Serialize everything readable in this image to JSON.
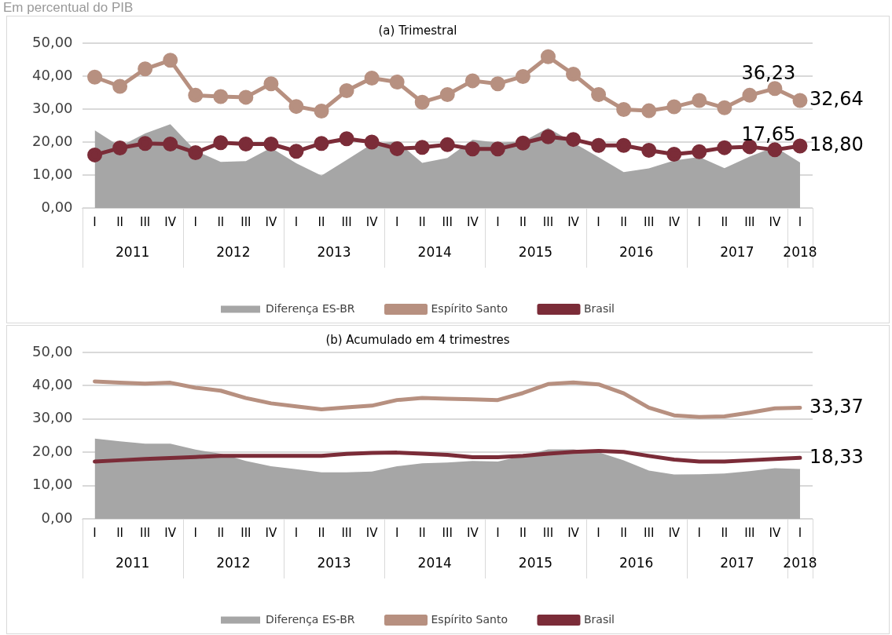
{
  "chart_data": [
    {
      "type": "line",
      "title": "(a) Trimestral",
      "subtitle": "Em percentual do PIB",
      "categories": [
        "I",
        "II",
        "III",
        "IV",
        "I",
        "II",
        "III",
        "IV",
        "I",
        "II",
        "III",
        "IV",
        "I",
        "II",
        "III",
        "IV",
        "I",
        "II",
        "III",
        "IV",
        "I",
        "II",
        "III",
        "IV",
        "I",
        "II",
        "III",
        "IV",
        "I"
      ],
      "annotations": [
        "2011",
        "2012",
        "2013",
        "2014",
        "2015",
        "2016",
        "2017",
        "2018"
      ],
      "series": [
        {
          "name": "Diferença ES-BR",
          "type": "area",
          "marker": "none",
          "color": "#a6a6a6",
          "values": [
            23.6,
            18.7,
            22.6,
            25.4,
            17.4,
            14.0,
            14.2,
            18.3,
            13.6,
            9.8,
            14.6,
            19.4,
            20.2,
            13.7,
            15.2,
            20.7,
            19.8,
            20.2,
            24.3,
            19.8,
            15.4,
            10.9,
            12.0,
            14.4,
            15.5,
            12.1,
            15.6,
            18.6,
            13.8
          ]
        },
        {
          "name": "Espírito Santo",
          "color": "#b79080",
          "values": [
            39.7,
            36.9,
            42.2,
            44.8,
            34.2,
            33.8,
            33.6,
            37.7,
            30.8,
            29.4,
            35.6,
            39.4,
            38.2,
            32.1,
            34.4,
            38.6,
            37.7,
            39.9,
            45.9,
            40.6,
            34.4,
            29.9,
            29.5,
            30.7,
            32.6,
            30.4,
            34.2,
            36.23,
            32.64
          ],
          "value_labels": [
            null,
            null,
            null,
            null,
            null,
            null,
            null,
            null,
            null,
            null,
            null,
            null,
            null,
            null,
            null,
            null,
            null,
            null,
            null,
            null,
            null,
            null,
            null,
            null,
            null,
            null,
            null,
            "36,23",
            "32,64"
          ]
        },
        {
          "name": "Brasil",
          "color": "#7b2c38",
          "values": [
            16.1,
            18.2,
            19.6,
            19.4,
            16.8,
            19.8,
            19.4,
            19.4,
            17.2,
            19.6,
            21.0,
            20.0,
            18.0,
            18.4,
            19.2,
            17.9,
            17.9,
            19.7,
            21.6,
            20.8,
            19.0,
            19.0,
            17.5,
            16.3,
            17.1,
            18.3,
            18.6,
            17.65,
            18.8
          ],
          "value_labels": [
            null,
            null,
            null,
            null,
            null,
            null,
            null,
            null,
            null,
            null,
            null,
            null,
            null,
            null,
            null,
            null,
            null,
            null,
            null,
            null,
            null,
            null,
            null,
            null,
            null,
            null,
            null,
            "17,65",
            "18,80"
          ]
        }
      ],
      "ylim": [
        0,
        50
      ],
      "yticks": [
        {
          "value": 0,
          "label": "0,00"
        },
        {
          "value": 10,
          "label": "10,00"
        },
        {
          "value": 20,
          "label": "20,00"
        },
        {
          "value": 30,
          "label": "30,00"
        },
        {
          "value": 40,
          "label": "40,00"
        },
        {
          "value": 50,
          "label": "50,00"
        }
      ],
      "grid": "y",
      "legend": "bottom",
      "marker": "circle"
    },
    {
      "type": "line",
      "title": "(b) Acumulado em 4 trimestres",
      "categories": [
        "I",
        "II",
        "III",
        "IV",
        "I",
        "II",
        "III",
        "IV",
        "I",
        "II",
        "III",
        "IV",
        "I",
        "II",
        "III",
        "IV",
        "I",
        "II",
        "III",
        "IV",
        "I",
        "II",
        "III",
        "IV",
        "I",
        "II",
        "III",
        "IV",
        "I"
      ],
      "annotations": [
        "2011",
        "2012",
        "2013",
        "2014",
        "2015",
        "2016",
        "2017",
        "2018"
      ],
      "series": [
        {
          "name": "Diferença ES-BR",
          "type": "area",
          "color": "#a6a6a6",
          "values": [
            24.1,
            23.3,
            22.6,
            22.6,
            20.8,
            19.6,
            17.4,
            15.8,
            14.9,
            14.0,
            14.0,
            14.2,
            15.8,
            16.7,
            16.9,
            17.4,
            17.2,
            18.9,
            20.9,
            20.9,
            20.0,
            17.6,
            14.5,
            13.3,
            13.4,
            13.6,
            14.3,
            15.2,
            15.0
          ]
        },
        {
          "name": "Espírito Santo",
          "color": "#b79080",
          "values": [
            41.3,
            40.9,
            40.6,
            40.9,
            39.4,
            38.5,
            36.3,
            34.7,
            33.8,
            32.9,
            33.5,
            34.0,
            35.7,
            36.3,
            36.1,
            35.9,
            35.7,
            37.8,
            40.5,
            41.0,
            40.4,
            37.7,
            33.4,
            31.1,
            30.6,
            30.8,
            31.9,
            33.2,
            33.37
          ],
          "value_labels": [
            null,
            null,
            null,
            null,
            null,
            null,
            null,
            null,
            null,
            null,
            null,
            null,
            null,
            null,
            null,
            null,
            null,
            null,
            null,
            null,
            null,
            null,
            null,
            null,
            null,
            null,
            null,
            null,
            "33,37"
          ]
        },
        {
          "name": "Brasil",
          "color": "#7b2c38",
          "values": [
            17.2,
            17.6,
            18.0,
            18.3,
            18.6,
            18.9,
            18.9,
            18.9,
            18.9,
            18.9,
            19.5,
            19.8,
            19.9,
            19.6,
            19.2,
            18.5,
            18.5,
            18.9,
            19.6,
            20.1,
            20.4,
            20.1,
            18.9,
            17.8,
            17.2,
            17.2,
            17.6,
            18.0,
            18.33
          ],
          "value_labels": [
            null,
            null,
            null,
            null,
            null,
            null,
            null,
            null,
            null,
            null,
            null,
            null,
            null,
            null,
            null,
            null,
            null,
            null,
            null,
            null,
            null,
            null,
            null,
            null,
            null,
            null,
            null,
            null,
            "18,33"
          ]
        }
      ],
      "ylim": [
        0,
        50
      ],
      "yticks": [
        {
          "value": 0,
          "label": "0,00"
        },
        {
          "value": 10,
          "label": "10,00"
        },
        {
          "value": 20,
          "label": "20,00"
        },
        {
          "value": 30,
          "label": "30,00"
        },
        {
          "value": 40,
          "label": "40,00"
        },
        {
          "value": 50,
          "label": "50,00"
        }
      ],
      "grid": "y",
      "legend": "bottom",
      "marker": "none"
    }
  ]
}
